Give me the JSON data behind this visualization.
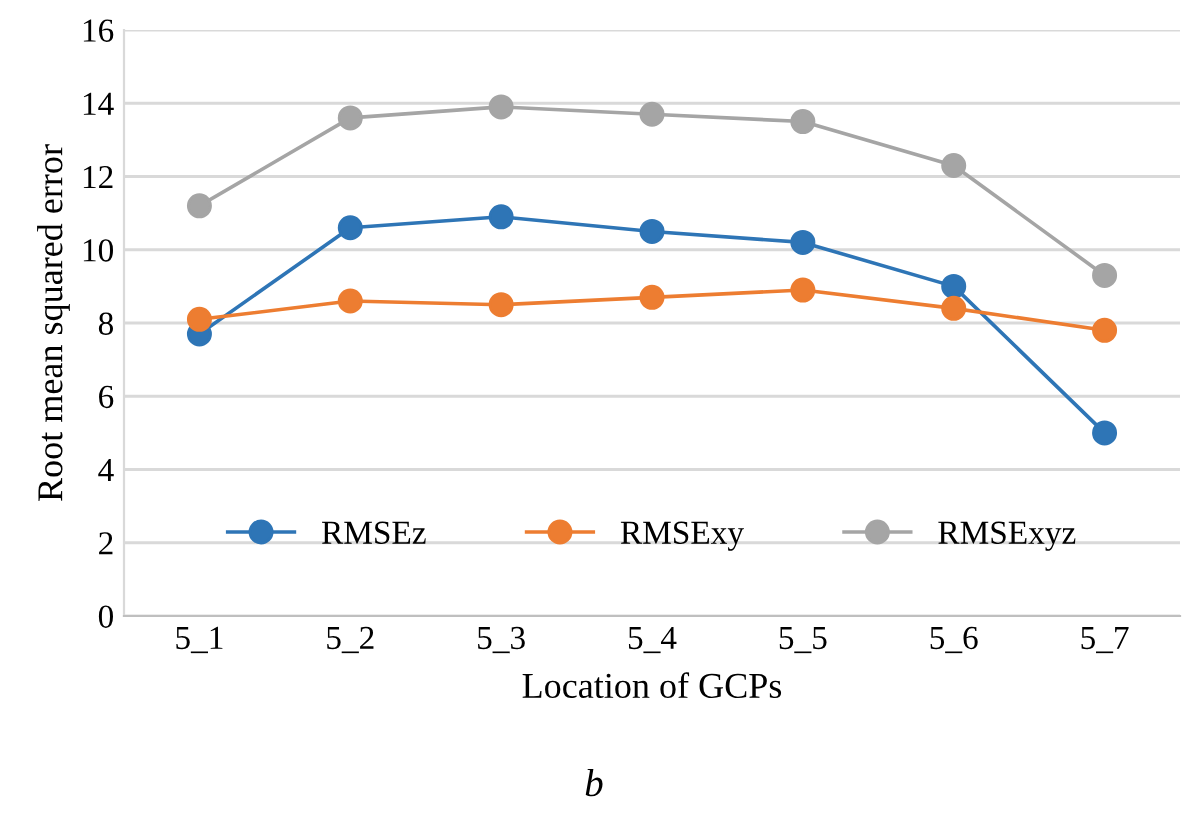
{
  "chart_data": {
    "type": "line",
    "xlabel": "Location of GCPs",
    "ylabel": "Root mean squared error",
    "annotations": [
      "b"
    ],
    "categories": [
      "5_1",
      "5_2",
      "5_3",
      "5_4",
      "5_5",
      "5_6",
      "5_7"
    ],
    "series": [
      {
        "name": "RMSEz",
        "color": "#2e75b6",
        "values": [
          7.7,
          10.6,
          10.9,
          10.5,
          10.2,
          9.0,
          5.0
        ]
      },
      {
        "name": "RMSExy",
        "color": "#ed7d31",
        "values": [
          8.1,
          8.6,
          8.5,
          8.7,
          8.9,
          8.4,
          7.8
        ]
      },
      {
        "name": "RMSExyz",
        "color": "#a5a5a5",
        "values": [
          11.2,
          13.6,
          13.9,
          13.7,
          13.5,
          12.3,
          9.3
        ]
      }
    ],
    "ylim": [
      0,
      16
    ],
    "yticks": [
      0,
      2,
      4,
      6,
      8,
      10,
      12,
      14,
      16
    ],
    "grid": "y",
    "legend": "bottom",
    "marker": "circle",
    "line_style": "solid"
  }
}
